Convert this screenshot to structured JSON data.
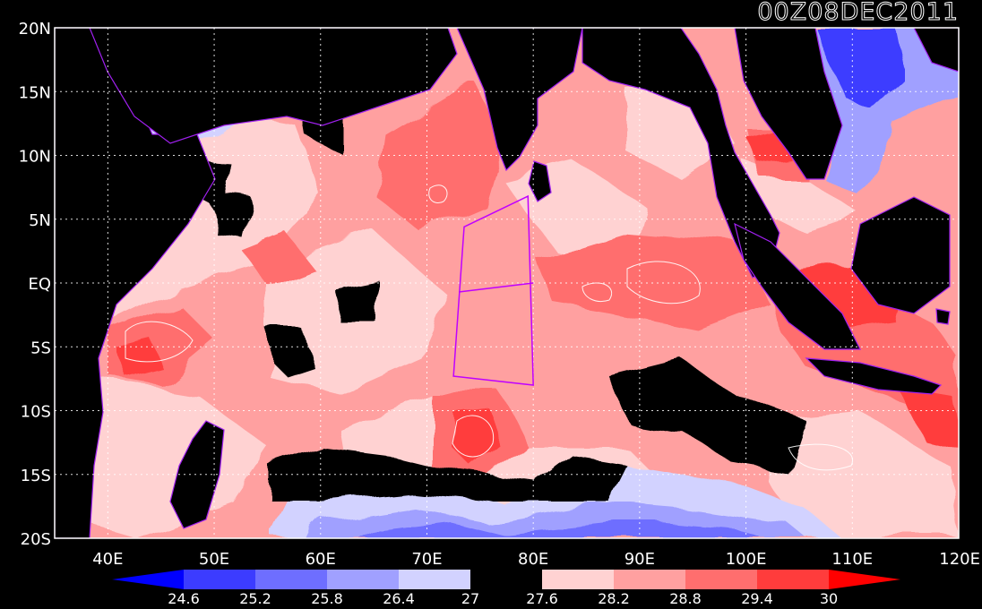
{
  "title": "00Z08DEC2011",
  "map": {
    "lon_range": [
      35,
      120
    ],
    "lat_range": [
      -20,
      20
    ],
    "lat_ticks": [
      {
        "value": 20,
        "label": "20N"
      },
      {
        "value": 15,
        "label": "15N"
      },
      {
        "value": 10,
        "label": "10N"
      },
      {
        "value": 5,
        "label": "5N"
      },
      {
        "value": 0,
        "label": "EQ"
      },
      {
        "value": -5,
        "label": "5S"
      },
      {
        "value": -10,
        "label": "10S"
      },
      {
        "value": -15,
        "label": "15S"
      },
      {
        "value": -20,
        "label": "20S"
      }
    ],
    "lon_ticks": [
      {
        "value": 40,
        "label": "40E"
      },
      {
        "value": 50,
        "label": "50E"
      },
      {
        "value": 60,
        "label": "60E"
      },
      {
        "value": 70,
        "label": "70E"
      },
      {
        "value": 80,
        "label": "80E"
      },
      {
        "value": 90,
        "label": "90E"
      },
      {
        "value": 100,
        "label": "100E"
      },
      {
        "value": 110,
        "label": "110E"
      },
      {
        "value": 120,
        "label": "120E"
      }
    ],
    "colors": {
      "land": "#000000",
      "frame": "#ffffff",
      "gridlines": "#ffffff",
      "coastline": "#a020f0",
      "box": "#c000ff"
    },
    "analysis_box": [
      [
        73.5,
        4.4
      ],
      [
        79.5,
        6.8
      ],
      [
        80,
        -8
      ],
      [
        72.5,
        -7.3
      ]
    ],
    "analysis_box_divider": [
      [
        73,
        -0.7
      ],
      [
        80,
        0
      ]
    ]
  },
  "colorbar": {
    "unit_labels": [
      "24.6",
      "25.2",
      "25.8",
      "26.4",
      "27",
      "27.6",
      "28.2",
      "28.8",
      "29.4",
      "30"
    ],
    "colors": [
      "#0000ff",
      "#3c3cff",
      "#6e6eff",
      "#a0a0ff",
      "#d2d2ff",
      "#000000",
      "#ffd2d2",
      "#ffa0a0",
      "#ff6e6e",
      "#ff3c3c",
      "#ff0000"
    ]
  }
}
